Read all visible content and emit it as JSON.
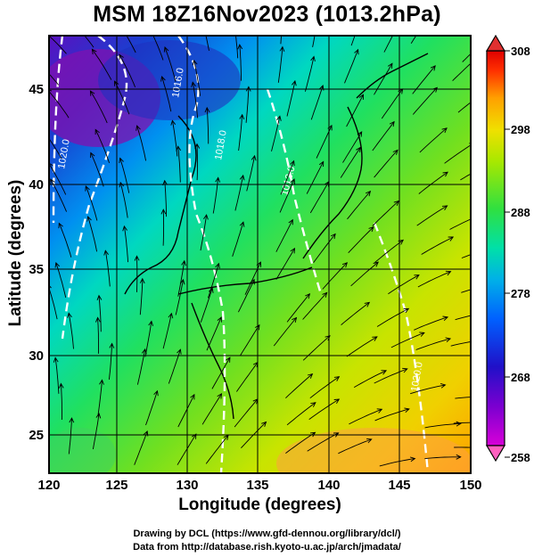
{
  "title": "MSM 18Z16Nov2023 (1013.2hPa)",
  "x_axis": {
    "label": "Longitude (degrees)",
    "ticks": [
      "120",
      "125",
      "130",
      "135",
      "140",
      "145",
      "150"
    ],
    "range": [
      120,
      150
    ]
  },
  "y_axis": {
    "label": "Latitude  (degrees)",
    "ticks": [
      "25",
      "30",
      "35",
      "40",
      "45"
    ],
    "range": [
      22.4,
      47.6
    ]
  },
  "colorbar": {
    "ticks": [
      "258",
      "268",
      "278",
      "288",
      "298",
      "308"
    ],
    "range": [
      258,
      308
    ],
    "colors": [
      "#d800d8",
      "#7a00d0",
      "#2010c8",
      "#0060ff",
      "#00b0e8",
      "#00e0a8",
      "#30e040",
      "#a8e800",
      "#f0e000",
      "#ffa000",
      "#ff3000",
      "#e00000"
    ]
  },
  "contour_labels": [
    "1020.0",
    "1016.0",
    "1012.0",
    "1018.0",
    "1020.0"
  ],
  "credits": {
    "drawing": "Drawing by DCL (https://www.gfd-dennou.org/library/dcl/)",
    "data": "Data from http://database.rish.kyoto-u.ac.jp/arch/jmadata/"
  }
}
